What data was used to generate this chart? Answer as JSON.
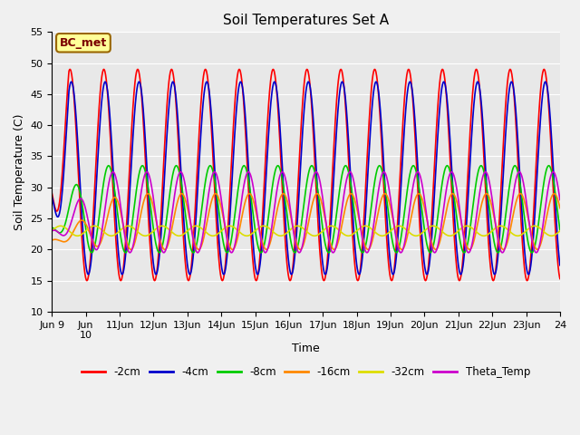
{
  "title": "Soil Temperatures Set A",
  "xlabel": "Time",
  "ylabel": "Soil Temperature (C)",
  "ylim": [
    10,
    55
  ],
  "fig_width": 6.4,
  "fig_height": 4.8,
  "dpi": 100,
  "background_color": "#f0f0f0",
  "plot_bg_color": "#e8e8e8",
  "annotation_text": "BC_met",
  "annotation_bg": "#ffff99",
  "annotation_border": "#996600",
  "grid_color": "#ffffff",
  "series": [
    {
      "label": "-2cm",
      "color": "#ff0000",
      "lw": 1.2,
      "mean": 32.0,
      "amp": 17.0,
      "phase": 0.28,
      "amp_lag": 0.5
    },
    {
      "label": "-4cm",
      "color": "#0000cc",
      "lw": 1.2,
      "mean": 31.5,
      "amp": 15.5,
      "phase": 0.32,
      "amp_lag": 0.5
    },
    {
      "label": "-8cm",
      "color": "#00cc00",
      "lw": 1.2,
      "mean": 26.5,
      "amp": 7.0,
      "phase": 0.42,
      "amp_lag": 1.0
    },
    {
      "label": "-16cm",
      "color": "#ff8800",
      "lw": 1.2,
      "mean": 24.5,
      "amp": 4.5,
      "phase": 0.58,
      "amp_lag": 2.0
    },
    {
      "label": "-32cm",
      "color": "#dddd00",
      "lw": 1.2,
      "mean": 23.0,
      "amp": 0.8,
      "phase": 0.0,
      "amp_lag": 0.0
    },
    {
      "label": "Theta_Temp",
      "color": "#cc00cc",
      "lw": 1.2,
      "mean": 26.0,
      "amp": 6.5,
      "phase": 0.55,
      "amp_lag": 1.5
    }
  ],
  "xtick_positions": [
    0,
    1,
    2,
    3,
    4,
    5,
    6,
    7,
    8,
    9,
    10,
    11,
    12,
    13,
    14,
    15
  ],
  "xtick_labels": [
    "Jun 9",
    "Jun\n10",
    "11Jun",
    "12Jun",
    "13Jun",
    "14Jun",
    "15Jun",
    "16Jun",
    "17Jun",
    "18Jun",
    "19Jun",
    "20Jun",
    "21Jun",
    "22Jun",
    "23Jun",
    "24"
  ]
}
